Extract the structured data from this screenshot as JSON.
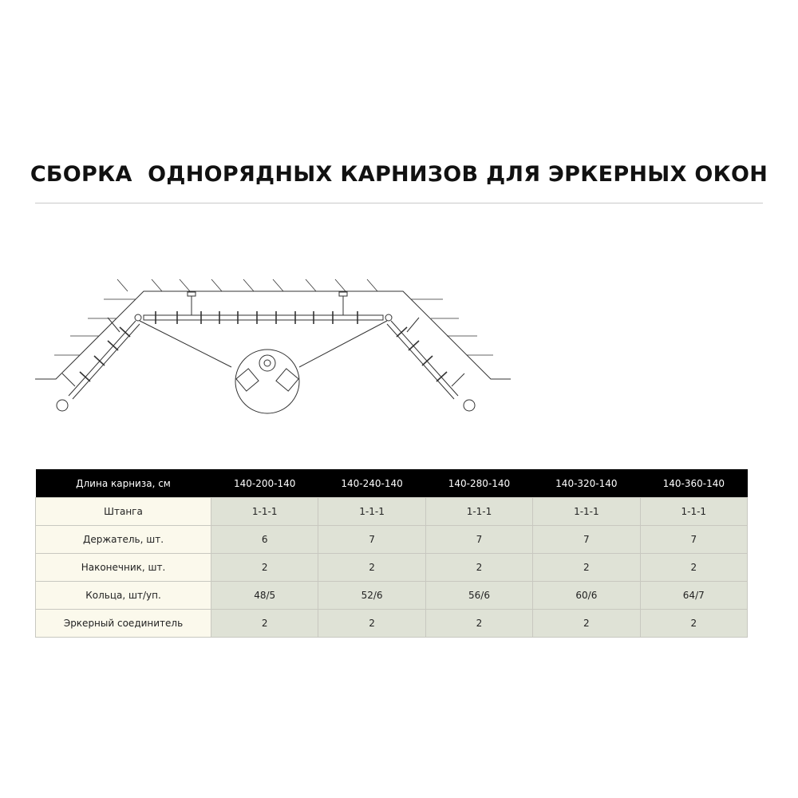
{
  "title": "СБОРКА  ОДНОРЯДНЫХ КАРНИЗОВ ДЛЯ ЭРКЕРНЫХ ОКОН",
  "table": {
    "header": [
      "Длина карниза, см",
      "140-200-140",
      "140-240-140",
      "140-280-140",
      "140-320-140",
      "140-360-140"
    ],
    "rows": [
      [
        "Штанга",
        "1-1-1",
        "1-1-1",
        "1-1-1",
        "1-1-1",
        "1-1-1"
      ],
      [
        "Держатель, шт.",
        "6",
        "7",
        "7",
        "7",
        "7"
      ],
      [
        "Наконечник, шт.",
        "2",
        "2",
        "2",
        "2",
        "2"
      ],
      [
        "Кольца, шт/уп.",
        "48/5",
        "52/6",
        "56/6",
        "60/6",
        "64/7"
      ],
      [
        "Эркерный соединитель",
        "2",
        "2",
        "2",
        "2",
        "2"
      ]
    ]
  },
  "colors": {
    "header_bg": "#000000",
    "label_bg": "#fbf9ec",
    "cell_bg": "#dfe2d6"
  }
}
